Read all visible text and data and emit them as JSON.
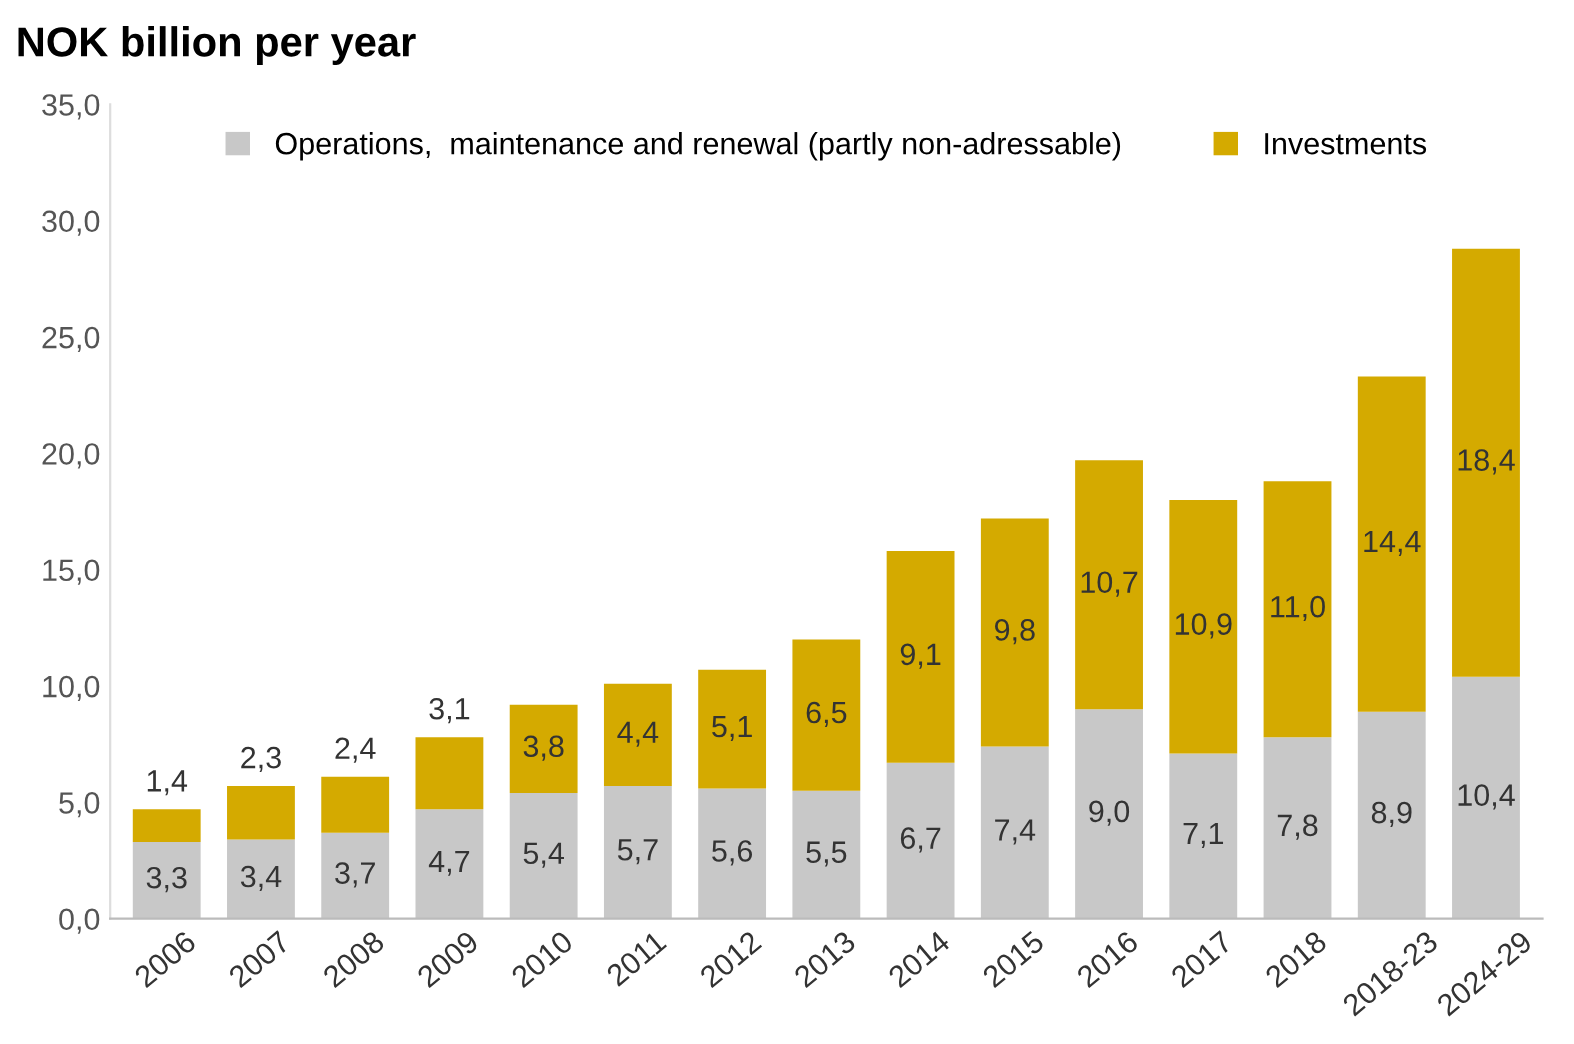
{
  "chart_data": {
    "type": "bar",
    "stacked": true,
    "title": "NOK billion per year",
    "categories": [
      "2006",
      "2007",
      "2008",
      "2009",
      "2010",
      "2011",
      "2012",
      "2013",
      "2014",
      "2015",
      "2016",
      "2017",
      "2018",
      "2018-23",
      "2024-29"
    ],
    "series": [
      {
        "name": "Operations,  maintenance and renewal (partly non-adressable)",
        "color": "#c8c8c8",
        "values": [
          3.3,
          3.4,
          3.7,
          4.7,
          5.4,
          5.7,
          5.6,
          5.5,
          6.7,
          7.4,
          9.0,
          7.1,
          7.8,
          8.9,
          10.4
        ],
        "value_labels": [
          "3,3",
          "3,4",
          "3,7",
          "4,7",
          "5,4",
          "5,7",
          "5,6",
          "5,5",
          "6,7",
          "7,4",
          "9,0",
          "7,1",
          "7,8",
          "8,9",
          "10,4"
        ]
      },
      {
        "name": "Investments",
        "color": "#d4aa00",
        "values": [
          1.4,
          2.3,
          2.4,
          3.1,
          3.8,
          4.4,
          5.1,
          6.5,
          9.1,
          9.8,
          10.7,
          10.9,
          11.0,
          14.4,
          18.4
        ],
        "value_labels": [
          "1,4",
          "2,3",
          "2,4",
          "3,1",
          "3,8",
          "4,4",
          "5,1",
          "6,5",
          "9,1",
          "9,8",
          "10,7",
          "10,9",
          "11,0",
          "14,4",
          "18,4"
        ]
      }
    ],
    "ylim": [
      0,
      35
    ],
    "yticks": [
      {
        "value": 0,
        "label": "0,0"
      },
      {
        "value": 5,
        "label": "5,0"
      },
      {
        "value": 10,
        "label": "10,0"
      },
      {
        "value": 15,
        "label": "15,0"
      },
      {
        "value": 20,
        "label": "20,0"
      },
      {
        "value": 25,
        "label": "25,0"
      },
      {
        "value": 30,
        "label": "30,0"
      },
      {
        "value": 35,
        "label": "35,0"
      }
    ],
    "grid": false,
    "legend": "top"
  }
}
